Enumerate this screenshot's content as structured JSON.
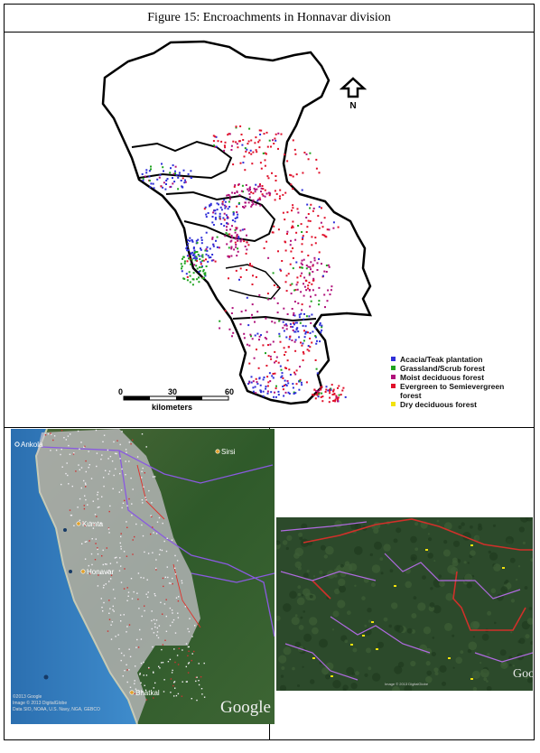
{
  "figure": {
    "caption": "Figure 15: Encroachments in Honnavar division"
  },
  "map": {
    "north_label": "N",
    "scale": {
      "ticks": [
        "0",
        "30",
        "60"
      ],
      "unit_label": "kilometers"
    },
    "legend": [
      {
        "label": "Acacia/Teak plantation",
        "color": "#2e2ed8"
      },
      {
        "label": "Grassland/Scrub forest",
        "color": "#1fa31f"
      },
      {
        "label": "Moist deciduous forest",
        "color": "#b0107a"
      },
      {
        "label": "Evergreen to Semievergreen forest",
        "color": "#e0102a"
      },
      {
        "label": "Dry deciduous forest",
        "color": "#f2e20c"
      }
    ]
  },
  "satellite_left": {
    "places": [
      "Ankola",
      "Sirsi",
      "Kumta",
      "Honavar",
      "Bhatkal"
    ],
    "attribution": [
      "©2013 Google",
      "Image © 2013 DigitalGlobe",
      "Data SIO, NOAA, U.S. Navy, NGA, GEBCO"
    ],
    "brand": "Google"
  },
  "satellite_right": {
    "attribution": [
      "Image © 2013 DigitalGlobe"
    ],
    "brand": "Goog"
  }
}
